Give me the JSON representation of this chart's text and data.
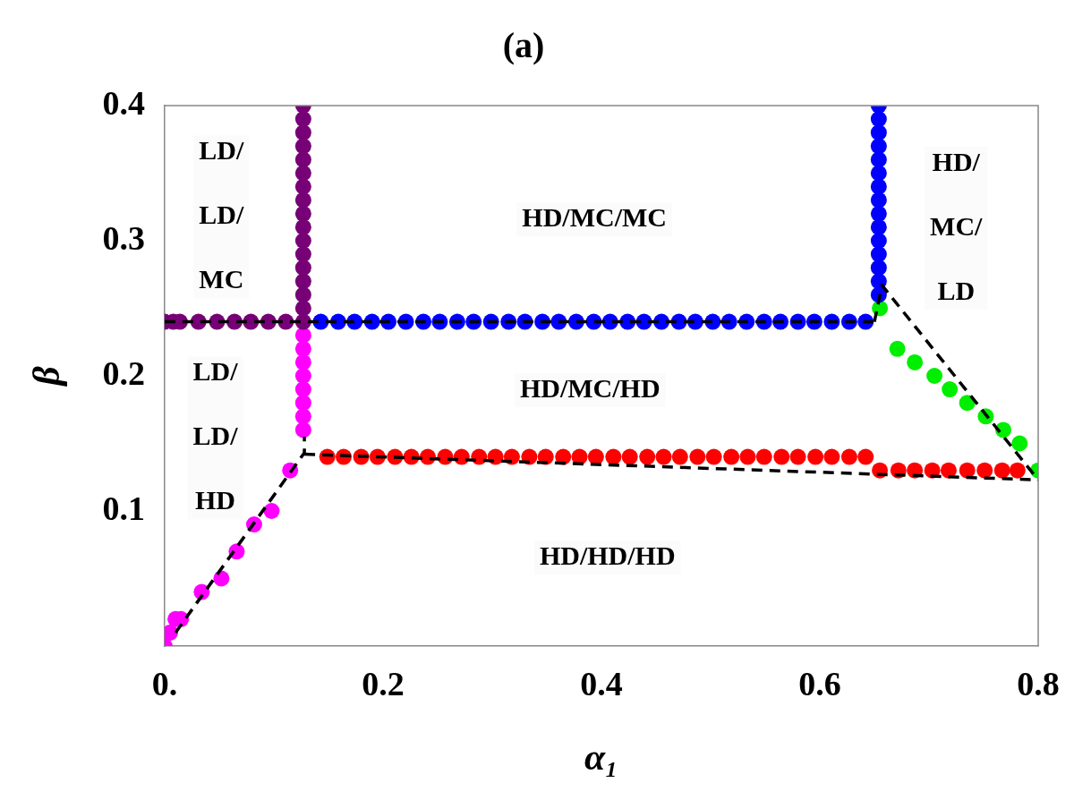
{
  "chart_data": {
    "type": "scatter",
    "title": "(a)",
    "xlabel": "α₁",
    "ylabel": "β",
    "legend": false,
    "grid": false,
    "xlim": [
      0,
      0.8
    ],
    "ylim": [
      0,
      0.4
    ],
    "xticks": [
      {
        "value": 0,
        "label": "0."
      },
      0.2,
      0.4,
      0.6,
      0.8
    ],
    "yticks": [
      0.1,
      0.2,
      0.3,
      0.4
    ],
    "series": [
      {
        "type": "line",
        "marker": "none",
        "line_style": "dashed",
        "color": "#000000",
        "x": [
          0,
          0.65
        ],
        "values": [
          0.24,
          0.24
        ]
      },
      {
        "type": "line",
        "marker": "none",
        "line_style": "dashed",
        "color": "#000000",
        "x": [
          0.01,
          0.128,
          0.128
        ],
        "values": [
          0.01,
          0.143,
          0.155
        ]
      },
      {
        "type": "line",
        "marker": "none",
        "line_style": "dashed",
        "color": "#000000",
        "x": [
          0.128,
          0.8
        ],
        "values": [
          0.142,
          0.123
        ]
      },
      {
        "type": "line",
        "marker": "none",
        "line_style": "dashed",
        "color": "#000000",
        "x": [
          0.65,
          0.657,
          0.8
        ],
        "values": [
          0.24,
          0.267,
          0.123
        ]
      },
      {
        "marker": "circle",
        "color": "#770077",
        "x": [
          0,
          0.008,
          0.014,
          0.031,
          0.048,
          0.064,
          0.079,
          0.095,
          0.111,
          0.127,
          0.127,
          0.127,
          0.127,
          0.127,
          0.127,
          0.127,
          0.127,
          0.127,
          0.127,
          0.127,
          0.127,
          0.127,
          0.127,
          0.127,
          0.127,
          0.127
        ],
        "values": [
          0.24,
          0.24,
          0.24,
          0.24,
          0.24,
          0.24,
          0.24,
          0.24,
          0.24,
          0.24,
          0.25,
          0.26,
          0.27,
          0.28,
          0.29,
          0.3,
          0.31,
          0.32,
          0.33,
          0.34,
          0.35,
          0.36,
          0.37,
          0.38,
          0.39,
          0.4
        ]
      },
      {
        "marker": "circle",
        "color": "#ff00ff",
        "x": [
          0,
          0.005,
          0.01,
          0.015,
          0.034,
          0.052,
          0.066,
          0.082,
          0.098,
          0.115,
          0.127,
          0.127,
          0.127,
          0.127,
          0.127,
          0.127,
          0.127,
          0.127
        ],
        "values": [
          0,
          0.01,
          0.02,
          0.02,
          0.04,
          0.05,
          0.07,
          0.09,
          0.1,
          0.13,
          0.16,
          0.17,
          0.18,
          0.19,
          0.2,
          0.21,
          0.22,
          0.23
        ]
      },
      {
        "marker": "circle",
        "color": "#0000ff",
        "x": [
          0.143,
          0.159,
          0.174,
          0.19,
          0.205,
          0.221,
          0.237,
          0.252,
          0.268,
          0.283,
          0.299,
          0.315,
          0.33,
          0.346,
          0.361,
          0.377,
          0.393,
          0.408,
          0.424,
          0.439,
          0.455,
          0.471,
          0.486,
          0.502,
          0.517,
          0.533,
          0.549,
          0.564,
          0.58,
          0.595,
          0.611,
          0.627,
          0.642,
          0.654,
          0.654,
          0.654,
          0.654,
          0.654,
          0.654,
          0.654,
          0.654,
          0.654,
          0.654,
          0.654,
          0.654,
          0.654,
          0.654,
          0.654
        ],
        "values": [
          0.24,
          0.24,
          0.24,
          0.24,
          0.24,
          0.24,
          0.24,
          0.24,
          0.24,
          0.24,
          0.24,
          0.24,
          0.24,
          0.24,
          0.24,
          0.24,
          0.24,
          0.24,
          0.24,
          0.24,
          0.24,
          0.24,
          0.24,
          0.24,
          0.24,
          0.24,
          0.24,
          0.24,
          0.24,
          0.24,
          0.24,
          0.24,
          0.24,
          0.26,
          0.27,
          0.28,
          0.29,
          0.3,
          0.31,
          0.32,
          0.33,
          0.34,
          0.35,
          0.36,
          0.37,
          0.38,
          0.39,
          0.4
        ]
      },
      {
        "marker": "circle",
        "color": "#ff0000",
        "x": [
          0.149,
          0.164,
          0.18,
          0.195,
          0.211,
          0.226,
          0.241,
          0.257,
          0.272,
          0.288,
          0.303,
          0.318,
          0.334,
          0.349,
          0.365,
          0.38,
          0.395,
          0.411,
          0.426,
          0.442,
          0.457,
          0.472,
          0.488,
          0.503,
          0.519,
          0.534,
          0.549,
          0.565,
          0.58,
          0.596,
          0.611,
          0.627,
          0.642,
          0.655,
          0.672,
          0.687,
          0.703,
          0.718,
          0.735,
          0.751,
          0.767,
          0.781
        ],
        "values": [
          0.14,
          0.14,
          0.14,
          0.14,
          0.14,
          0.14,
          0.14,
          0.14,
          0.14,
          0.14,
          0.14,
          0.14,
          0.14,
          0.14,
          0.14,
          0.14,
          0.14,
          0.14,
          0.14,
          0.14,
          0.14,
          0.14,
          0.14,
          0.14,
          0.14,
          0.14,
          0.14,
          0.14,
          0.14,
          0.14,
          0.14,
          0.14,
          0.14,
          0.13,
          0.13,
          0.13,
          0.13,
          0.13,
          0.13,
          0.13,
          0.13,
          0.13
        ]
      },
      {
        "marker": "circle",
        "color": "#00ee00",
        "x": [
          0.655,
          0.671,
          0.687,
          0.705,
          0.719,
          0.735,
          0.752,
          0.768,
          0.783,
          0.8
        ],
        "values": [
          0.25,
          0.22,
          0.21,
          0.2,
          0.19,
          0.18,
          0.17,
          0.16,
          0.15,
          0.13
        ]
      }
    ],
    "annotations": [
      "LD/\nLD/\nMC",
      "HD/MC/MC",
      "HD/\nMC/\nLD",
      "LD/\nLD/\nHD",
      "HD/MC/HD",
      "HD/HD/HD"
    ]
  }
}
